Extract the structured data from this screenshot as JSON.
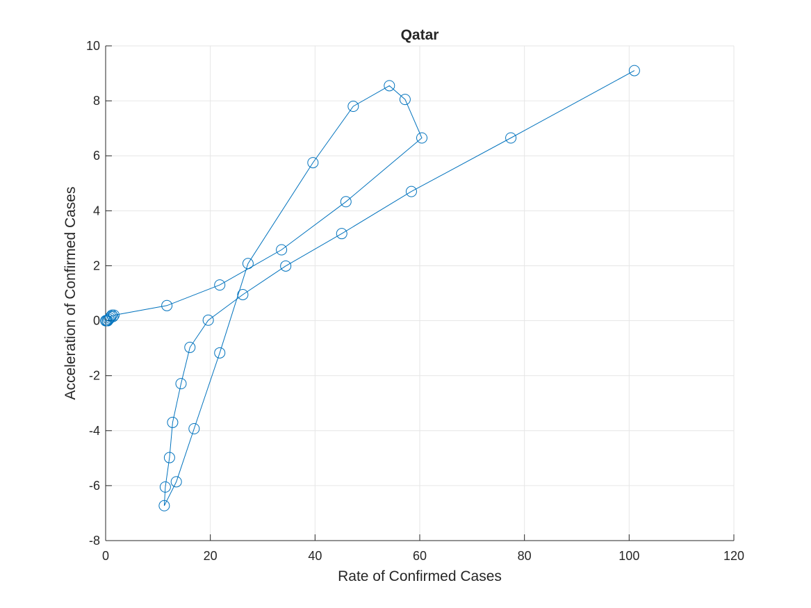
{
  "chart_data": {
    "type": "line",
    "title": "Qatar",
    "xlabel": "Rate of Confirmed Cases",
    "ylabel": "Acceleration of Confirmed Cases",
    "xlim": [
      0,
      120
    ],
    "ylim": [
      -8,
      10
    ],
    "xticks": [
      0,
      20,
      40,
      60,
      80,
      100,
      120
    ],
    "yticks": [
      -8,
      -6,
      -4,
      -2,
      0,
      2,
      4,
      6,
      8,
      10
    ],
    "grid": true,
    "marker": "circle",
    "color": "#0072BD",
    "grid_color": "#e6e6e6",
    "axis_color": "#262626",
    "series": [
      {
        "x": [
          0.0,
          0.2,
          0.4,
          0.6,
          0.8,
          1.0,
          1.2,
          1.4,
          1.6,
          11.7,
          21.8,
          33.6,
          45.9,
          60.4,
          57.2,
          54.2,
          47.3,
          39.6,
          27.2,
          21.8,
          16.9,
          13.5,
          11.2,
          11.4,
          12.2,
          12.8,
          14.4,
          16.1,
          19.6,
          26.2,
          34.4,
          45.1,
          58.4,
          77.4,
          101.0
        ],
        "y": [
          0.0,
          0.0,
          0.0,
          0.05,
          0.1,
          0.15,
          0.2,
          0.15,
          0.2,
          0.55,
          1.3,
          2.58,
          4.33,
          6.65,
          8.05,
          8.55,
          7.8,
          5.75,
          2.08,
          -1.17,
          -3.93,
          -5.86,
          -6.73,
          -6.05,
          -4.98,
          -3.7,
          -2.29,
          -0.97,
          0.02,
          0.95,
          1.99,
          3.17,
          4.7,
          6.65,
          9.1
        ]
      }
    ]
  }
}
